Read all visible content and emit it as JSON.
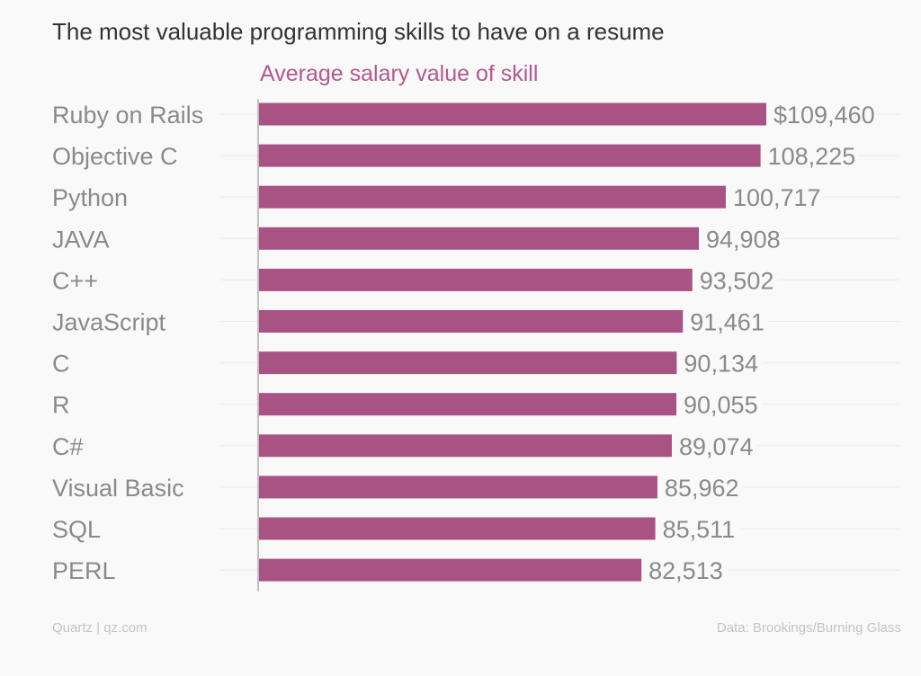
{
  "title": "The most valuable programming skills to have on a resume",
  "subtitle": "Average salary value of skill",
  "footer": {
    "source_left": "Quartz | qz.com",
    "source_right": "Data: Brookings/Burning Glass"
  },
  "colors": {
    "bar": "#a85384",
    "subtitle": "#b5588f",
    "label": "#8a8a8a"
  },
  "chart_data": {
    "type": "bar",
    "orientation": "horizontal",
    "title": "The most valuable programming skills to have on a resume",
    "subtitle": "Average salary value of skill",
    "categories": [
      "Ruby on Rails",
      "Objective C",
      "Python",
      "JAVA",
      "C++",
      "JavaScript",
      "C",
      "R",
      "C#",
      "Visual Basic",
      "SQL",
      "PERL"
    ],
    "values": [
      109460,
      108225,
      100717,
      94908,
      93502,
      91461,
      90134,
      90055,
      89074,
      85962,
      85511,
      82513
    ],
    "value_labels": [
      "$109,460",
      "108,225",
      "100,717",
      "94,908",
      "93,502",
      "91,461",
      "90,134",
      "90,055",
      "89,074",
      "85,962",
      "85,511",
      "82,513"
    ],
    "xlim": [
      0,
      109460
    ],
    "xlabel": "",
    "ylabel": "",
    "grid": true
  }
}
